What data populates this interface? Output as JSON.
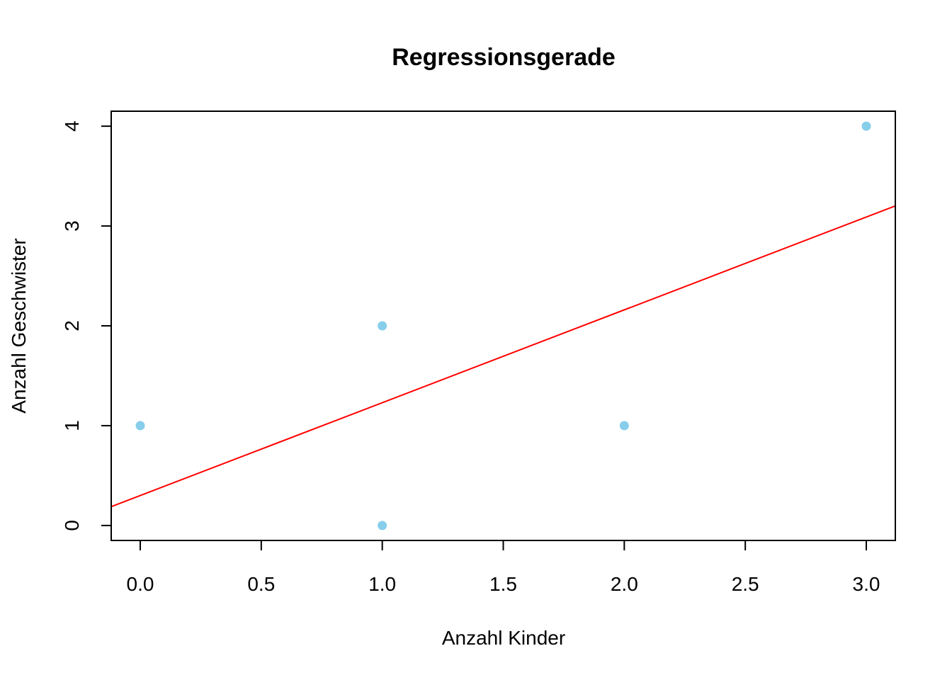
{
  "chart_data": {
    "type": "scatter",
    "title": "Regressionsgerade",
    "xlabel": "Anzahl Kinder",
    "ylabel": "Anzahl Geschwister",
    "xlim": [
      -0.12,
      3.12
    ],
    "ylim": [
      -0.15,
      4.15
    ],
    "x_ticks": [
      {
        "value": 0.0,
        "label": "0.0"
      },
      {
        "value": 0.5,
        "label": "0.5"
      },
      {
        "value": 1.0,
        "label": "1.0"
      },
      {
        "value": 1.5,
        "label": "1.5"
      },
      {
        "value": 2.0,
        "label": "2.0"
      },
      {
        "value": 2.5,
        "label": "2.5"
      },
      {
        "value": 3.0,
        "label": "3.0"
      }
    ],
    "y_ticks": [
      {
        "value": 0,
        "label": "0"
      },
      {
        "value": 1,
        "label": "1"
      },
      {
        "value": 2,
        "label": "2"
      },
      {
        "value": 3,
        "label": "3"
      },
      {
        "value": 4,
        "label": "4"
      }
    ],
    "points": [
      {
        "x": 0,
        "y": 1
      },
      {
        "x": 1,
        "y": 2
      },
      {
        "x": 1,
        "y": 0
      },
      {
        "x": 2,
        "y": 1
      },
      {
        "x": 3,
        "y": 4
      }
    ],
    "regression_line": {
      "intercept": 0.3,
      "slope": 0.93
    },
    "point_color": "#87ceeb",
    "line_color": "#ff0000",
    "grid": false,
    "legend": "none"
  }
}
